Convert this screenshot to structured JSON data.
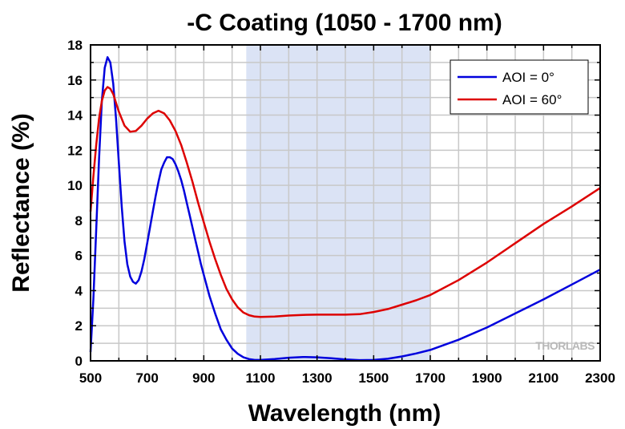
{
  "chart_data": {
    "type": "line",
    "title": "-C Coating (1050 - 1700 nm)",
    "xlabel": "Wavelength (nm)",
    "ylabel": "Reflectance (%)",
    "xlim": [
      500,
      2300
    ],
    "ylim": [
      0,
      18
    ],
    "x_ticks": [
      500,
      700,
      900,
      1100,
      1300,
      1500,
      1700,
      1900,
      2100,
      2300
    ],
    "y_ticks": [
      0,
      2,
      4,
      6,
      8,
      10,
      12,
      14,
      16,
      18
    ],
    "grid": true,
    "legend_position": "top-right",
    "highlight_band": {
      "from": 1050,
      "to": 1700,
      "color": "#dbe3f5"
    },
    "watermark": "THORLABS",
    "series": [
      {
        "name": "AOI = 0°",
        "color": "#0000dd",
        "points": [
          [
            500,
            0.5
          ],
          [
            510,
            3.5
          ],
          [
            520,
            7.5
          ],
          [
            530,
            11.5
          ],
          [
            540,
            14.8
          ],
          [
            550,
            16.7
          ],
          [
            560,
            17.3
          ],
          [
            570,
            17.0
          ],
          [
            580,
            15.8
          ],
          [
            590,
            13.8
          ],
          [
            600,
            11.3
          ],
          [
            610,
            8.8
          ],
          [
            620,
            6.8
          ],
          [
            630,
            5.5
          ],
          [
            640,
            4.8
          ],
          [
            650,
            4.5
          ],
          [
            660,
            4.4
          ],
          [
            670,
            4.6
          ],
          [
            680,
            5.1
          ],
          [
            690,
            5.8
          ],
          [
            700,
            6.7
          ],
          [
            710,
            7.6
          ],
          [
            720,
            8.5
          ],
          [
            730,
            9.4
          ],
          [
            740,
            10.2
          ],
          [
            750,
            10.9
          ],
          [
            760,
            11.3
          ],
          [
            770,
            11.6
          ],
          [
            780,
            11.6
          ],
          [
            790,
            11.5
          ],
          [
            800,
            11.2
          ],
          [
            810,
            10.8
          ],
          [
            820,
            10.3
          ],
          [
            830,
            9.7
          ],
          [
            840,
            9.0
          ],
          [
            850,
            8.3
          ],
          [
            860,
            7.6
          ],
          [
            870,
            6.9
          ],
          [
            880,
            6.2
          ],
          [
            890,
            5.5
          ],
          [
            900,
            4.9
          ],
          [
            920,
            3.7
          ],
          [
            940,
            2.7
          ],
          [
            960,
            1.8
          ],
          [
            980,
            1.2
          ],
          [
            1000,
            0.7
          ],
          [
            1020,
            0.4
          ],
          [
            1040,
            0.2
          ],
          [
            1060,
            0.1
          ],
          [
            1080,
            0.05
          ],
          [
            1100,
            0.05
          ],
          [
            1150,
            0.1
          ],
          [
            1200,
            0.18
          ],
          [
            1250,
            0.22
          ],
          [
            1300,
            0.2
          ],
          [
            1350,
            0.15
          ],
          [
            1400,
            0.08
          ],
          [
            1450,
            0.04
          ],
          [
            1500,
            0.05
          ],
          [
            1550,
            0.12
          ],
          [
            1600,
            0.25
          ],
          [
            1650,
            0.42
          ],
          [
            1700,
            0.62
          ],
          [
            1800,
            1.2
          ],
          [
            1900,
            1.9
          ],
          [
            2000,
            2.7
          ],
          [
            2100,
            3.5
          ],
          [
            2200,
            4.35
          ],
          [
            2300,
            5.2
          ]
        ]
      },
      {
        "name": "AOI = 60°",
        "color": "#dd0000",
        "points": [
          [
            500,
            8.5
          ],
          [
            510,
            10.5
          ],
          [
            520,
            12.3
          ],
          [
            530,
            13.8
          ],
          [
            540,
            14.8
          ],
          [
            550,
            15.4
          ],
          [
            560,
            15.6
          ],
          [
            570,
            15.5
          ],
          [
            580,
            15.2
          ],
          [
            590,
            14.7
          ],
          [
            600,
            14.2
          ],
          [
            620,
            13.4
          ],
          [
            640,
            13.05
          ],
          [
            660,
            13.1
          ],
          [
            680,
            13.4
          ],
          [
            700,
            13.8
          ],
          [
            720,
            14.1
          ],
          [
            740,
            14.25
          ],
          [
            760,
            14.1
          ],
          [
            780,
            13.7
          ],
          [
            800,
            13.1
          ],
          [
            820,
            12.3
          ],
          [
            840,
            11.3
          ],
          [
            860,
            10.2
          ],
          [
            880,
            9.0
          ],
          [
            900,
            7.9
          ],
          [
            920,
            6.8
          ],
          [
            940,
            5.8
          ],
          [
            960,
            4.9
          ],
          [
            980,
            4.1
          ],
          [
            1000,
            3.5
          ],
          [
            1020,
            3.05
          ],
          [
            1040,
            2.75
          ],
          [
            1060,
            2.6
          ],
          [
            1080,
            2.52
          ],
          [
            1100,
            2.5
          ],
          [
            1150,
            2.52
          ],
          [
            1200,
            2.58
          ],
          [
            1250,
            2.62
          ],
          [
            1300,
            2.63
          ],
          [
            1350,
            2.63
          ],
          [
            1400,
            2.63
          ],
          [
            1450,
            2.66
          ],
          [
            1500,
            2.78
          ],
          [
            1550,
            2.95
          ],
          [
            1600,
            3.2
          ],
          [
            1650,
            3.45
          ],
          [
            1700,
            3.75
          ],
          [
            1800,
            4.6
          ],
          [
            1900,
            5.6
          ],
          [
            2000,
            6.7
          ],
          [
            2100,
            7.8
          ],
          [
            2200,
            8.8
          ],
          [
            2300,
            9.85
          ]
        ]
      }
    ]
  }
}
